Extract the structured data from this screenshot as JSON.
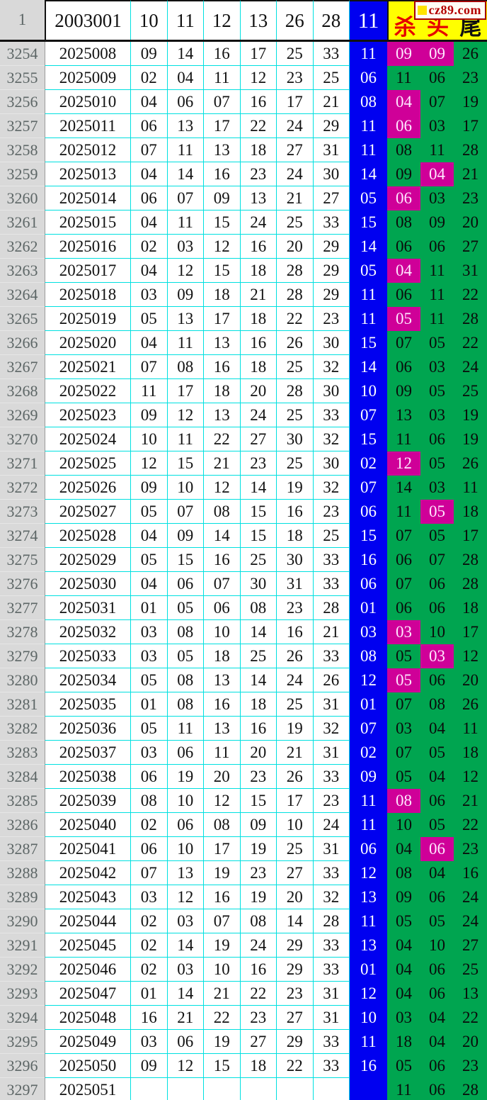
{
  "chart_data": {
    "type": "table",
    "logo": {
      "text": "cz89.com"
    },
    "header": {
      "row_label": "1",
      "period": "2003001",
      "numbers": [
        "10",
        "11",
        "12",
        "13",
        "26",
        "28"
      ],
      "blue": "11",
      "tail_labels": [
        "杀",
        "头",
        "尾"
      ]
    },
    "colors": {
      "blue_ball": "#0000f0",
      "green_zone": "#00a550",
      "magenta_highlight": "#cf0098",
      "yellow_header": "#ffff00",
      "grid_cyan": "#00e0e0",
      "gutter_bg": "#d9d9d9",
      "logo_red": "#a40000"
    },
    "rows": [
      {
        "serial": "3254",
        "period": "2025008",
        "reds": [
          "09",
          "14",
          "16",
          "17",
          "25",
          "33"
        ],
        "blue": "11",
        "extras": [
          "09",
          "09",
          "26"
        ],
        "hl": [
          0,
          1
        ]
      },
      {
        "serial": "3255",
        "period": "2025009",
        "reds": [
          "02",
          "04",
          "11",
          "12",
          "23",
          "25"
        ],
        "blue": "06",
        "extras": [
          "11",
          "06",
          "23"
        ],
        "hl": []
      },
      {
        "serial": "3256",
        "period": "2025010",
        "reds": [
          "04",
          "06",
          "07",
          "16",
          "17",
          "21"
        ],
        "blue": "08",
        "extras": [
          "04",
          "07",
          "19"
        ],
        "hl": [
          0
        ]
      },
      {
        "serial": "3257",
        "period": "2025011",
        "reds": [
          "06",
          "13",
          "17",
          "22",
          "24",
          "29"
        ],
        "blue": "11",
        "extras": [
          "06",
          "03",
          "17"
        ],
        "hl": [
          0
        ]
      },
      {
        "serial": "3258",
        "period": "2025012",
        "reds": [
          "07",
          "11",
          "13",
          "18",
          "27",
          "31"
        ],
        "blue": "11",
        "extras": [
          "08",
          "11",
          "28"
        ],
        "hl": []
      },
      {
        "serial": "3259",
        "period": "2025013",
        "reds": [
          "04",
          "14",
          "16",
          "23",
          "24",
          "30"
        ],
        "blue": "14",
        "extras": [
          "09",
          "04",
          "21"
        ],
        "hl": [
          1
        ]
      },
      {
        "serial": "3260",
        "period": "2025014",
        "reds": [
          "06",
          "07",
          "09",
          "13",
          "21",
          "27"
        ],
        "blue": "05",
        "extras": [
          "06",
          "03",
          "23"
        ],
        "hl": [
          0
        ]
      },
      {
        "serial": "3261",
        "period": "2025015",
        "reds": [
          "04",
          "11",
          "15",
          "24",
          "25",
          "33"
        ],
        "blue": "15",
        "extras": [
          "08",
          "09",
          "20"
        ],
        "hl": []
      },
      {
        "serial": "3262",
        "period": "2025016",
        "reds": [
          "02",
          "03",
          "12",
          "16",
          "20",
          "29"
        ],
        "blue": "14",
        "extras": [
          "06",
          "06",
          "27"
        ],
        "hl": []
      },
      {
        "serial": "3263",
        "period": "2025017",
        "reds": [
          "04",
          "12",
          "15",
          "18",
          "28",
          "29"
        ],
        "blue": "05",
        "extras": [
          "04",
          "11",
          "31"
        ],
        "hl": [
          0
        ]
      },
      {
        "serial": "3264",
        "period": "2025018",
        "reds": [
          "03",
          "09",
          "18",
          "21",
          "28",
          "29"
        ],
        "blue": "11",
        "extras": [
          "06",
          "11",
          "22"
        ],
        "hl": []
      },
      {
        "serial": "3265",
        "period": "2025019",
        "reds": [
          "05",
          "13",
          "17",
          "18",
          "22",
          "23"
        ],
        "blue": "11",
        "extras": [
          "05",
          "11",
          "28"
        ],
        "hl": [
          0
        ]
      },
      {
        "serial": "3266",
        "period": "2025020",
        "reds": [
          "04",
          "11",
          "13",
          "16",
          "26",
          "30"
        ],
        "blue": "15",
        "extras": [
          "07",
          "05",
          "22"
        ],
        "hl": []
      },
      {
        "serial": "3267",
        "period": "2025021",
        "reds": [
          "07",
          "08",
          "16",
          "18",
          "25",
          "32"
        ],
        "blue": "14",
        "extras": [
          "06",
          "03",
          "24"
        ],
        "hl": []
      },
      {
        "serial": "3268",
        "period": "2025022",
        "reds": [
          "11",
          "17",
          "18",
          "20",
          "28",
          "30"
        ],
        "blue": "10",
        "extras": [
          "09",
          "05",
          "25"
        ],
        "hl": []
      },
      {
        "serial": "3269",
        "period": "2025023",
        "reds": [
          "09",
          "12",
          "13",
          "24",
          "25",
          "33"
        ],
        "blue": "07",
        "extras": [
          "13",
          "03",
          "19"
        ],
        "hl": []
      },
      {
        "serial": "3270",
        "period": "2025024",
        "reds": [
          "10",
          "11",
          "22",
          "27",
          "30",
          "32"
        ],
        "blue": "15",
        "extras": [
          "11",
          "06",
          "19"
        ],
        "hl": []
      },
      {
        "serial": "3271",
        "period": "2025025",
        "reds": [
          "12",
          "15",
          "21",
          "23",
          "25",
          "30"
        ],
        "blue": "02",
        "extras": [
          "12",
          "05",
          "26"
        ],
        "hl": [
          0
        ]
      },
      {
        "serial": "3272",
        "period": "2025026",
        "reds": [
          "09",
          "10",
          "12",
          "14",
          "19",
          "32"
        ],
        "blue": "07",
        "extras": [
          "14",
          "03",
          "11"
        ],
        "hl": []
      },
      {
        "serial": "3273",
        "period": "2025027",
        "reds": [
          "05",
          "07",
          "08",
          "15",
          "16",
          "23"
        ],
        "blue": "06",
        "extras": [
          "11",
          "05",
          "18"
        ],
        "hl": [
          1
        ]
      },
      {
        "serial": "3274",
        "period": "2025028",
        "reds": [
          "04",
          "09",
          "14",
          "15",
          "18",
          "25"
        ],
        "blue": "15",
        "extras": [
          "07",
          "05",
          "17"
        ],
        "hl": []
      },
      {
        "serial": "3275",
        "period": "2025029",
        "reds": [
          "05",
          "15",
          "16",
          "25",
          "30",
          "33"
        ],
        "blue": "16",
        "extras": [
          "06",
          "07",
          "28"
        ],
        "hl": []
      },
      {
        "serial": "3276",
        "period": "2025030",
        "reds": [
          "04",
          "06",
          "07",
          "30",
          "31",
          "33"
        ],
        "blue": "06",
        "extras": [
          "07",
          "06",
          "28"
        ],
        "hl": []
      },
      {
        "serial": "3277",
        "period": "2025031",
        "reds": [
          "01",
          "05",
          "06",
          "08",
          "23",
          "28"
        ],
        "blue": "01",
        "extras": [
          "06",
          "06",
          "18"
        ],
        "hl": []
      },
      {
        "serial": "3278",
        "period": "2025032",
        "reds": [
          "03",
          "08",
          "10",
          "14",
          "16",
          "21"
        ],
        "blue": "03",
        "extras": [
          "03",
          "10",
          "17"
        ],
        "hl": [
          0
        ]
      },
      {
        "serial": "3279",
        "period": "2025033",
        "reds": [
          "03",
          "05",
          "18",
          "25",
          "26",
          "33"
        ],
        "blue": "08",
        "extras": [
          "05",
          "03",
          "12"
        ],
        "hl": [
          1
        ]
      },
      {
        "serial": "3280",
        "period": "2025034",
        "reds": [
          "05",
          "08",
          "13",
          "14",
          "24",
          "26"
        ],
        "blue": "12",
        "extras": [
          "05",
          "06",
          "20"
        ],
        "hl": [
          0
        ]
      },
      {
        "serial": "3281",
        "period": "2025035",
        "reds": [
          "01",
          "08",
          "16",
          "18",
          "25",
          "31"
        ],
        "blue": "01",
        "extras": [
          "07",
          "08",
          "26"
        ],
        "hl": []
      },
      {
        "serial": "3282",
        "period": "2025036",
        "reds": [
          "05",
          "11",
          "13",
          "16",
          "19",
          "32"
        ],
        "blue": "07",
        "extras": [
          "03",
          "04",
          "11"
        ],
        "hl": []
      },
      {
        "serial": "3283",
        "period": "2025037",
        "reds": [
          "03",
          "06",
          "11",
          "20",
          "21",
          "31"
        ],
        "blue": "02",
        "extras": [
          "07",
          "05",
          "18"
        ],
        "hl": []
      },
      {
        "serial": "3284",
        "period": "2025038",
        "reds": [
          "06",
          "19",
          "20",
          "23",
          "26",
          "33"
        ],
        "blue": "09",
        "extras": [
          "05",
          "04",
          "12"
        ],
        "hl": []
      },
      {
        "serial": "3285",
        "period": "2025039",
        "reds": [
          "08",
          "10",
          "12",
          "15",
          "17",
          "23"
        ],
        "blue": "11",
        "extras": [
          "08",
          "06",
          "21"
        ],
        "hl": [
          0
        ]
      },
      {
        "serial": "3286",
        "period": "2025040",
        "reds": [
          "02",
          "06",
          "08",
          "09",
          "10",
          "24"
        ],
        "blue": "11",
        "extras": [
          "10",
          "05",
          "22"
        ],
        "hl": []
      },
      {
        "serial": "3287",
        "period": "2025041",
        "reds": [
          "06",
          "10",
          "17",
          "19",
          "25",
          "31"
        ],
        "blue": "06",
        "extras": [
          "04",
          "06",
          "23"
        ],
        "hl": [
          1
        ]
      },
      {
        "serial": "3288",
        "period": "2025042",
        "reds": [
          "07",
          "13",
          "19",
          "23",
          "27",
          "33"
        ],
        "blue": "12",
        "extras": [
          "08",
          "04",
          "16"
        ],
        "hl": []
      },
      {
        "serial": "3289",
        "period": "2025043",
        "reds": [
          "03",
          "12",
          "16",
          "19",
          "20",
          "32"
        ],
        "blue": "13",
        "extras": [
          "09",
          "06",
          "24"
        ],
        "hl": []
      },
      {
        "serial": "3290",
        "period": "2025044",
        "reds": [
          "02",
          "03",
          "07",
          "08",
          "14",
          "28"
        ],
        "blue": "11",
        "extras": [
          "05",
          "05",
          "24"
        ],
        "hl": []
      },
      {
        "serial": "3291",
        "period": "2025045",
        "reds": [
          "02",
          "14",
          "19",
          "24",
          "29",
          "33"
        ],
        "blue": "13",
        "extras": [
          "04",
          "10",
          "27"
        ],
        "hl": []
      },
      {
        "serial": "3292",
        "period": "2025046",
        "reds": [
          "02",
          "03",
          "10",
          "16",
          "29",
          "33"
        ],
        "blue": "01",
        "extras": [
          "04",
          "06",
          "25"
        ],
        "hl": []
      },
      {
        "serial": "3293",
        "period": "2025047",
        "reds": [
          "01",
          "14",
          "21",
          "22",
          "23",
          "31"
        ],
        "blue": "12",
        "extras": [
          "04",
          "06",
          "13"
        ],
        "hl": []
      },
      {
        "serial": "3294",
        "period": "2025048",
        "reds": [
          "16",
          "21",
          "22",
          "23",
          "27",
          "31"
        ],
        "blue": "10",
        "extras": [
          "03",
          "04",
          "22"
        ],
        "hl": []
      },
      {
        "serial": "3295",
        "period": "2025049",
        "reds": [
          "03",
          "06",
          "19",
          "27",
          "29",
          "33"
        ],
        "blue": "11",
        "extras": [
          "18",
          "04",
          "20"
        ],
        "hl": []
      },
      {
        "serial": "3296",
        "period": "2025050",
        "reds": [
          "09",
          "12",
          "15",
          "18",
          "22",
          "33"
        ],
        "blue": "16",
        "extras": [
          "05",
          "06",
          "23"
        ],
        "hl": []
      },
      {
        "serial": "3297",
        "period": "2025051",
        "reds": [
          "",
          "",
          "",
          "",
          "",
          ""
        ],
        "blue": "",
        "extras": [
          "11",
          "06",
          "28"
        ],
        "hl": []
      }
    ]
  }
}
